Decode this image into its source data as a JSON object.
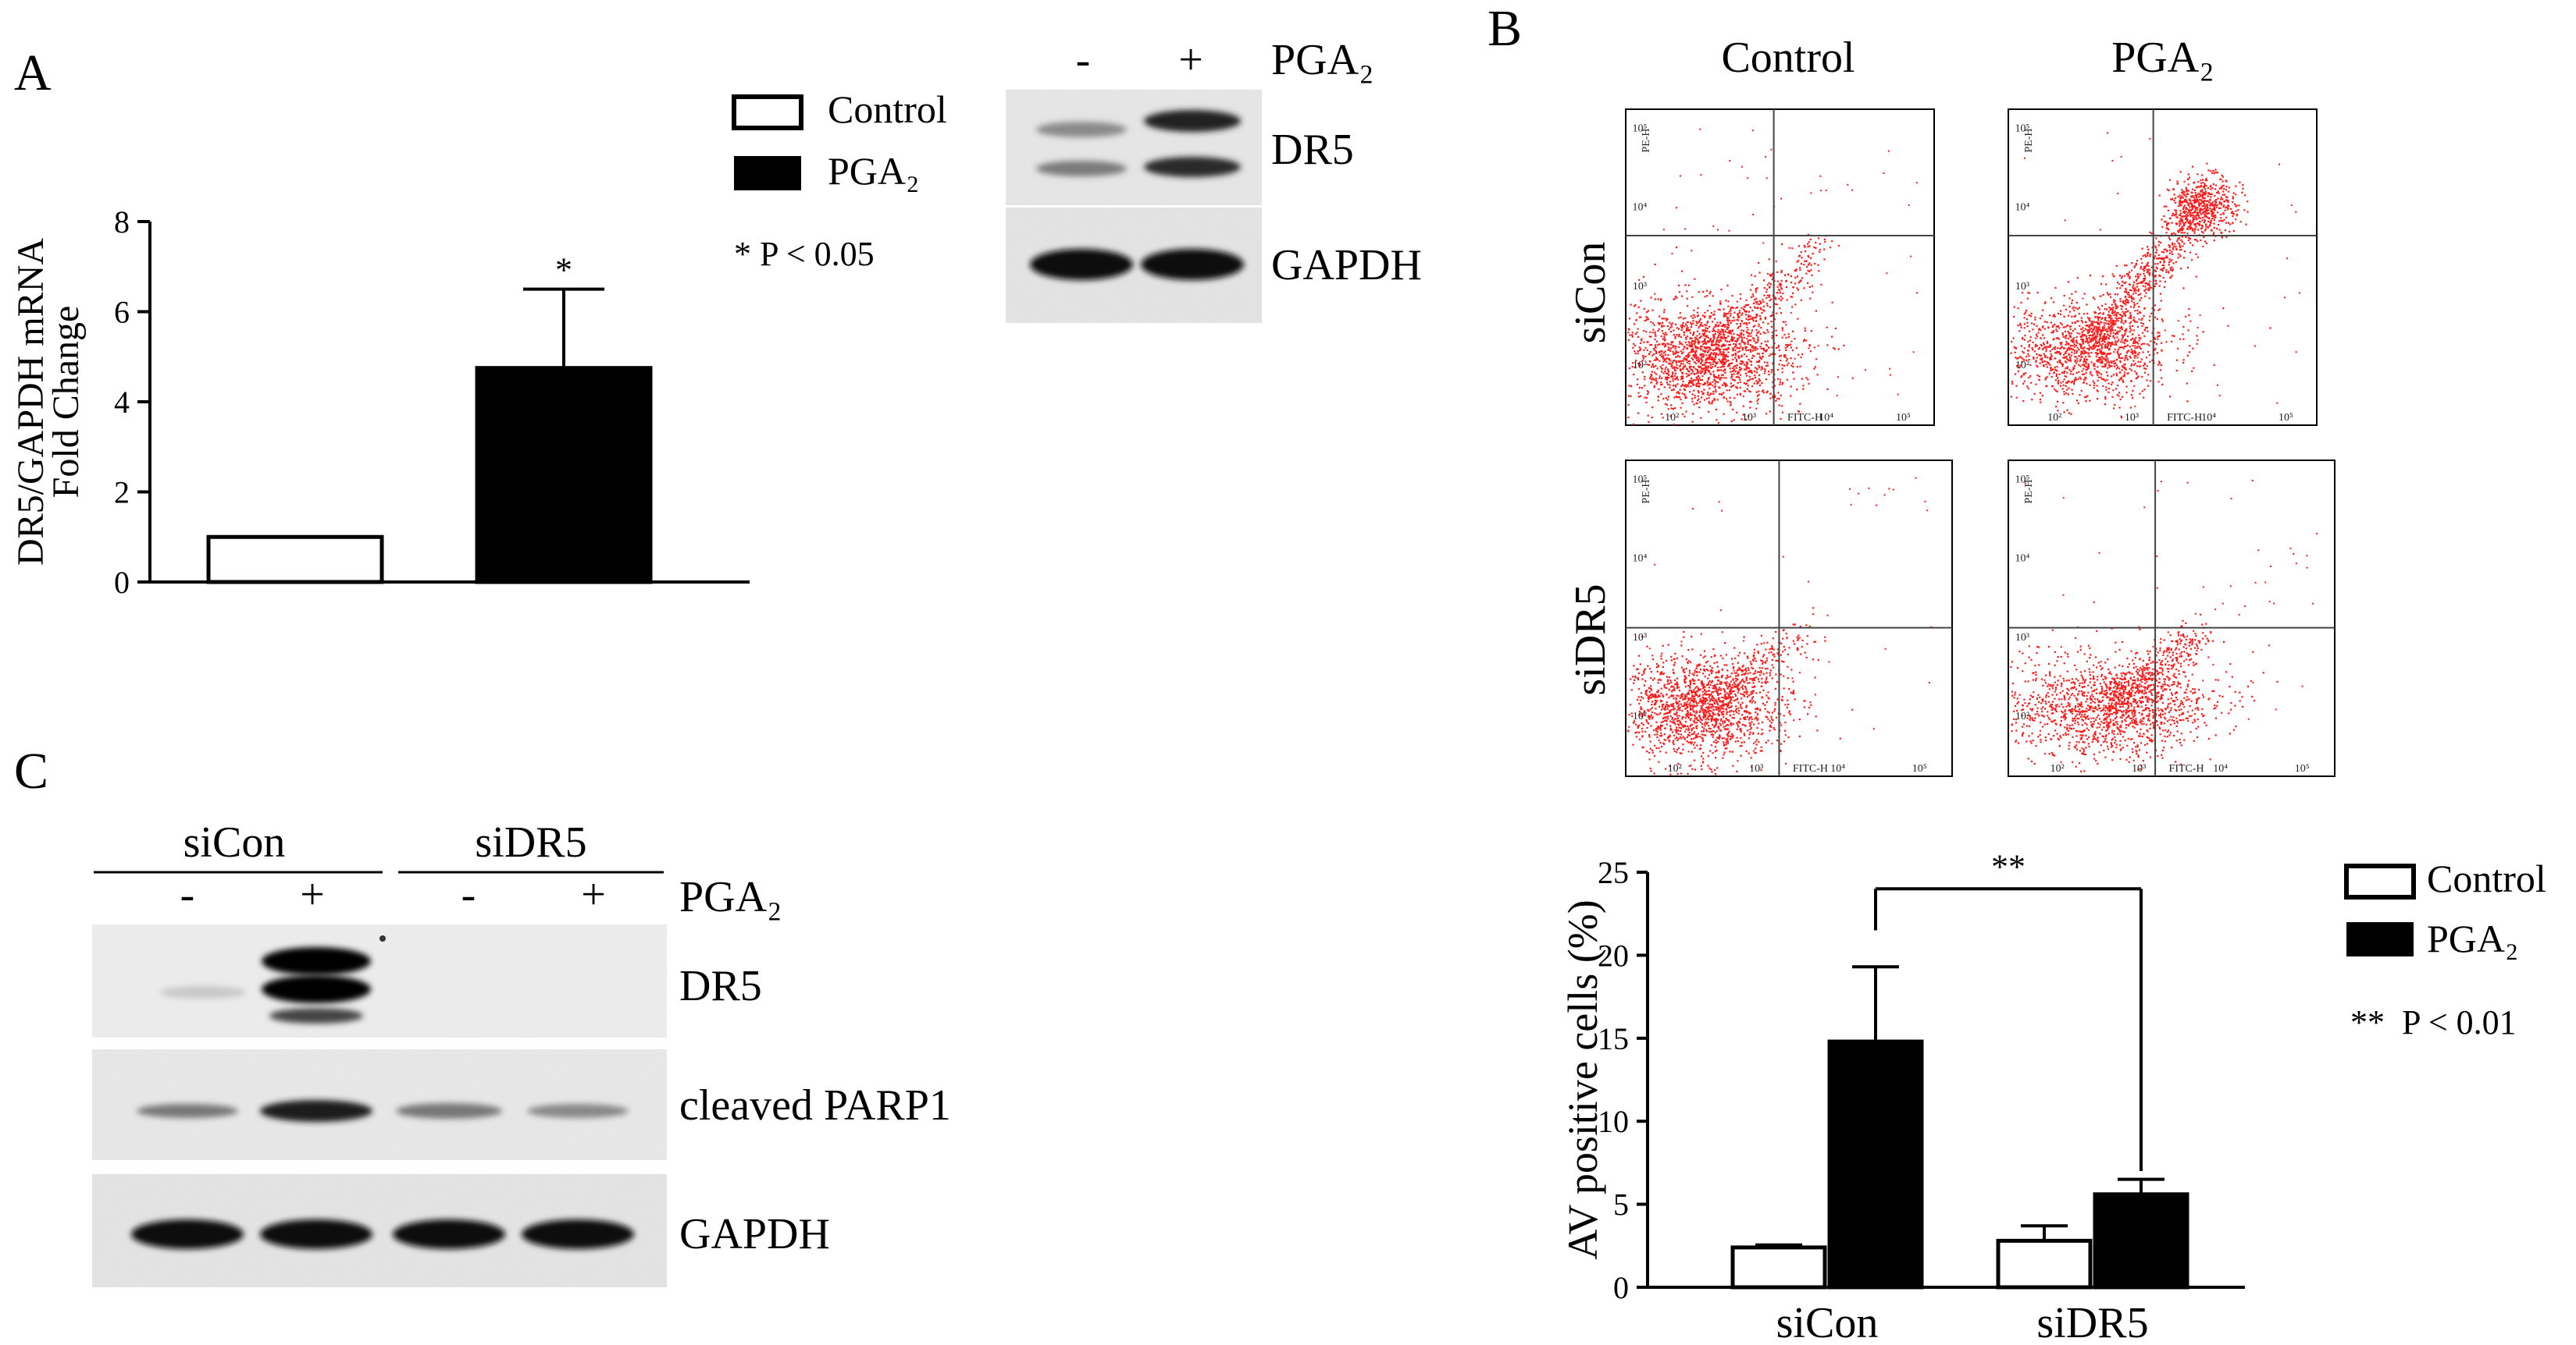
{
  "panels": {
    "A": {
      "letter": "A",
      "legend": {
        "control": "Control",
        "treated": "PGA₂",
        "significance": "* P < 0.05"
      },
      "blot": {
        "columns": [
          "-",
          "+"
        ],
        "treatment": "PGA₂",
        "rows": [
          "DR5",
          "GAPDH"
        ]
      }
    },
    "B": {
      "letter": "B",
      "columns": [
        "Control",
        "PGA₂"
      ],
      "rows": [
        "siCon",
        "siDR5"
      ],
      "flow_axes": {
        "x": "FITC-H",
        "y": "PE-H"
      },
      "flow_ticks": [
        "10²",
        "10³",
        "10⁴",
        "10⁵"
      ],
      "legend": {
        "control": "Control",
        "treated": "PGA₂",
        "significance": "**  P < 0.01"
      },
      "bracket_label": "**"
    },
    "C": {
      "letter": "C",
      "groups": [
        "siCon",
        "siDR5"
      ],
      "lanes": [
        "-",
        "+",
        "-",
        "+"
      ],
      "treatment": "PGA₂",
      "rows": [
        "DR5",
        "cleaved PARP1",
        "GAPDH"
      ]
    }
  },
  "chart_data": [
    {
      "type": "bar",
      "panel": "A",
      "categories": [
        "Control",
        "PGA₂"
      ],
      "values": [
        1.0,
        4.75
      ],
      "errors": [
        0,
        1.75
      ],
      "annotations": [
        "",
        "*"
      ],
      "ylabel": "DR5/GAPDH mRNA\nFold Change",
      "ylim": [
        0,
        8
      ],
      "yticks": [
        0,
        2,
        4,
        6,
        8
      ],
      "colors": {
        "Control": "#ffffff",
        "PGA₂": "#000000"
      }
    },
    {
      "type": "bar",
      "panel": "B",
      "categories": [
        "siCon",
        "siDR5"
      ],
      "series": [
        {
          "name": "Control",
          "values": [
            2.4,
            2.8
          ],
          "errors": [
            0.15,
            0.9
          ],
          "color": "#ffffff"
        },
        {
          "name": "PGA₂",
          "values": [
            14.8,
            5.6
          ],
          "errors": [
            4.5,
            0.9
          ],
          "color": "#000000"
        }
      ],
      "ylabel": "AV positive cells (%)",
      "ylim": [
        0,
        25
      ],
      "yticks": [
        0,
        5,
        10,
        15,
        20,
        25
      ]
    }
  ]
}
